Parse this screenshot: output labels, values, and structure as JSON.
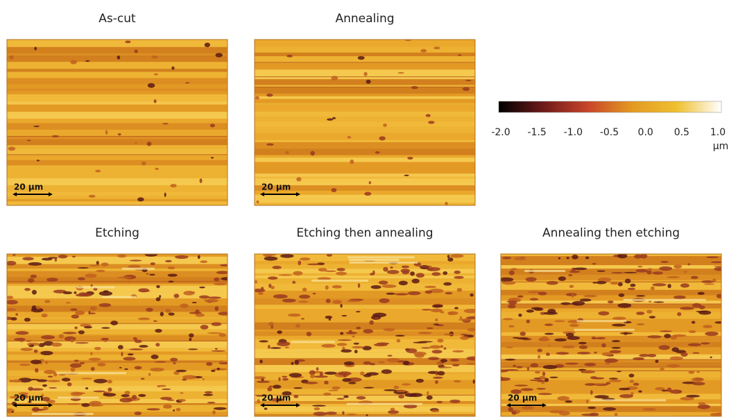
{
  "panels": [
    {
      "title": "As-cut",
      "scale_bar": "20 µm"
    },
    {
      "title": "Annealing",
      "scale_bar": "20 µm"
    },
    {
      "title": "Etching",
      "scale_bar": "20 µm"
    },
    {
      "title": "Etching then annealing",
      "scale_bar": "20 µm"
    },
    {
      "title": "Annealing then etching",
      "scale_bar": "20 µm"
    }
  ],
  "colorbar": {
    "clim": [
      -2,
      1
    ],
    "ticks": [
      {
        "value": -2,
        "label": "-2.0"
      },
      -1.5,
      {
        "value": -1,
        "label": "-1.0"
      },
      -0.5,
      {
        "value": 0,
        "label": "0.0"
      },
      0.5,
      {
        "value": 1,
        "label": "1.0"
      }
    ],
    "unit": "µm",
    "colors": [
      "#000000",
      "#6e1a1a",
      "#c8452a",
      "#e49a22",
      "#efc030",
      "#ffffff"
    ]
  }
}
